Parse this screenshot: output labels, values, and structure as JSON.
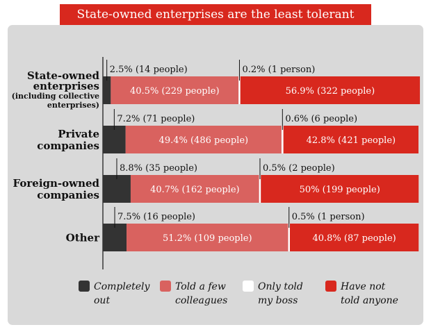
{
  "title": "State-owned enterprises are the least tolerant",
  "chart_data": {
    "type": "bar",
    "stacked": true,
    "orientation": "horizontal",
    "categories": [
      [
        "State-owned",
        "enterprises",
        "(including collective",
        "enterprises)"
      ],
      [
        "Private",
        "companies"
      ],
      [
        "Foreign-owned",
        "companies"
      ],
      [
        "Other"
      ]
    ],
    "series": [
      {
        "name": "Completely out",
        "color": "#333333",
        "values": [
          2.5,
          7.2,
          8.8,
          7.5
        ],
        "labels": [
          "2.5% (14 people)",
          "7.2% (71 people)",
          "8.8% (35 people)",
          "7.5% (16 people)"
        ]
      },
      {
        "name": "Told a few colleagues",
        "color": "#d9625f",
        "values": [
          40.5,
          49.4,
          40.7,
          51.2
        ],
        "labels": [
          "40.5% (229 people)",
          "49.4% (486 people)",
          "40.7% (162 people)",
          "51.2% (109 people)"
        ]
      },
      {
        "name": "Only told my boss",
        "color": "#ffffff",
        "values": [
          0.2,
          0.6,
          0.5,
          0.5
        ],
        "labels": [
          "0.2% (1 person)",
          "0.6% (6 people)",
          "0.5% (2 people)",
          "0.5% (1 person)"
        ]
      },
      {
        "name": "Have not told anyone",
        "color": "#d8281e",
        "values": [
          56.9,
          42.8,
          50,
          40.8
        ],
        "labels": [
          "56.9% (322 people)",
          "42.8% (421 people)",
          "50% (199 people)",
          "40.8% (87 people)"
        ]
      }
    ],
    "legend_position": "bottom",
    "grid": false
  },
  "legend": [
    {
      "lines": [
        "Completely",
        "out"
      ],
      "color": "#333333"
    },
    {
      "lines": [
        "Told a few",
        "colleagues"
      ],
      "color": "#d9625f"
    },
    {
      "lines": [
        "Only told",
        "my boss"
      ],
      "color": "#ffffff"
    },
    {
      "lines": [
        "Have not",
        "told anyone"
      ],
      "color": "#d8281e"
    }
  ]
}
